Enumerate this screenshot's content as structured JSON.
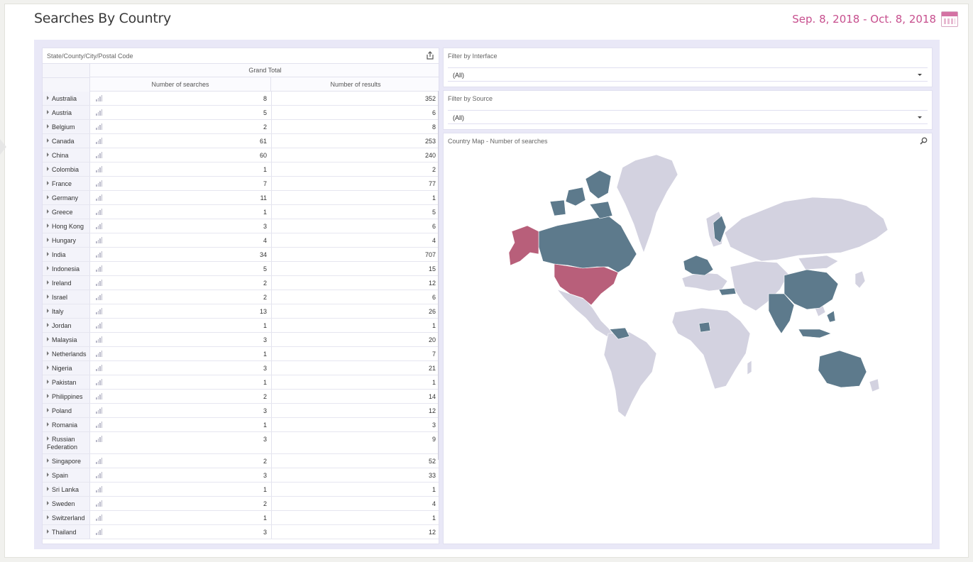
{
  "page": {
    "title": "Searches By Country",
    "date_range": "Sep. 8, 2018 - Oct. 8, 2018"
  },
  "colors": {
    "accent": "#c74f8e",
    "highlight_country": "#b85f7a",
    "active_country": "#5d7a8c",
    "inactive_country": "#d3d2e0"
  },
  "table": {
    "panel_title": "State/County/City/Postal Code",
    "group_header": "Grand Total",
    "columns": [
      "Number of searches",
      "Number of results"
    ],
    "rows": [
      {
        "label": "Australia",
        "searches": "8",
        "results": "352"
      },
      {
        "label": "Austria",
        "searches": "5",
        "results": "6"
      },
      {
        "label": "Belgium",
        "searches": "2",
        "results": "8"
      },
      {
        "label": "Canada",
        "searches": "61",
        "results": "253"
      },
      {
        "label": "China",
        "searches": "60",
        "results": "240"
      },
      {
        "label": "Colombia",
        "searches": "1",
        "results": "2"
      },
      {
        "label": "France",
        "searches": "7",
        "results": "77"
      },
      {
        "label": "Germany",
        "searches": "11",
        "results": "1"
      },
      {
        "label": "Greece",
        "searches": "1",
        "results": "5"
      },
      {
        "label": "Hong Kong",
        "searches": "3",
        "results": "6"
      },
      {
        "label": "Hungary",
        "searches": "4",
        "results": "4"
      },
      {
        "label": "India",
        "searches": "34",
        "results": "707"
      },
      {
        "label": "Indonesia",
        "searches": "5",
        "results": "15"
      },
      {
        "label": "Ireland",
        "searches": "2",
        "results": "12"
      },
      {
        "label": "Israel",
        "searches": "2",
        "results": "6"
      },
      {
        "label": "Italy",
        "searches": "13",
        "results": "26"
      },
      {
        "label": "Jordan",
        "searches": "1",
        "results": "1"
      },
      {
        "label": "Malaysia",
        "searches": "3",
        "results": "20"
      },
      {
        "label": "Netherlands",
        "searches": "1",
        "results": "7"
      },
      {
        "label": "Nigeria",
        "searches": "3",
        "results": "21"
      },
      {
        "label": "Pakistan",
        "searches": "1",
        "results": "1"
      },
      {
        "label": "Philippines",
        "searches": "2",
        "results": "14"
      },
      {
        "label": "Poland",
        "searches": "3",
        "results": "12"
      },
      {
        "label": "Romania",
        "searches": "1",
        "results": "3"
      },
      {
        "label": "Russian Federation",
        "searches": "3",
        "results": "9"
      },
      {
        "label": "Singapore",
        "searches": "2",
        "results": "52"
      },
      {
        "label": "Spain",
        "searches": "3",
        "results": "33"
      },
      {
        "label": "Sri Lanka",
        "searches": "1",
        "results": "1"
      },
      {
        "label": "Sweden",
        "searches": "2",
        "results": "4"
      },
      {
        "label": "Switzerland",
        "searches": "1",
        "results": "1"
      },
      {
        "label": "Thailand",
        "searches": "3",
        "results": "12"
      }
    ]
  },
  "filters": [
    {
      "title": "Filter by Interface",
      "value": "(All)"
    },
    {
      "title": "Filter by Source",
      "value": "(All)"
    }
  ],
  "map": {
    "title": "Country Map - Number of searches"
  }
}
